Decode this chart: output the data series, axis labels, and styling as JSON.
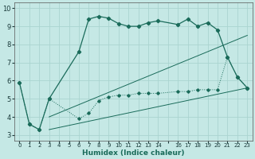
{
  "xlabel": "Humidex (Indice chaleur)",
  "background_color": "#c5e8e5",
  "grid_color": "#aad4d0",
  "line_color": "#1a6b5a",
  "xlim": [
    -0.5,
    23.5
  ],
  "ylim": [
    2.7,
    10.3
  ],
  "yticks": [
    3,
    4,
    5,
    6,
    7,
    8,
    9,
    10
  ],
  "series1_x": [
    0,
    1,
    2,
    3,
    6,
    7,
    8,
    9,
    10,
    11,
    12,
    13,
    14,
    16,
    17,
    18,
    19,
    20,
    21,
    22,
    23
  ],
  "series1_y": [
    5.9,
    3.6,
    3.3,
    5.0,
    7.6,
    9.4,
    9.55,
    9.45,
    9.15,
    9.0,
    9.0,
    9.2,
    9.3,
    9.1,
    9.4,
    9.0,
    9.2,
    8.8,
    7.3,
    6.2,
    5.6
  ],
  "series2_x": [
    0,
    1,
    2,
    3,
    6,
    7,
    8,
    9,
    10,
    11,
    12,
    13,
    14,
    16,
    17,
    18,
    19,
    20,
    21,
    22,
    23
  ],
  "series2_y": [
    5.9,
    3.6,
    3.3,
    5.0,
    3.9,
    4.2,
    4.9,
    5.1,
    5.2,
    5.2,
    5.3,
    5.3,
    5.3,
    5.4,
    5.4,
    5.5,
    5.5,
    5.5,
    7.3,
    6.2,
    5.6
  ],
  "line3_x": [
    3,
    23
  ],
  "line3_y": [
    4.0,
    8.5
  ],
  "line4_x": [
    3,
    23
  ],
  "line4_y": [
    3.3,
    5.6
  ]
}
